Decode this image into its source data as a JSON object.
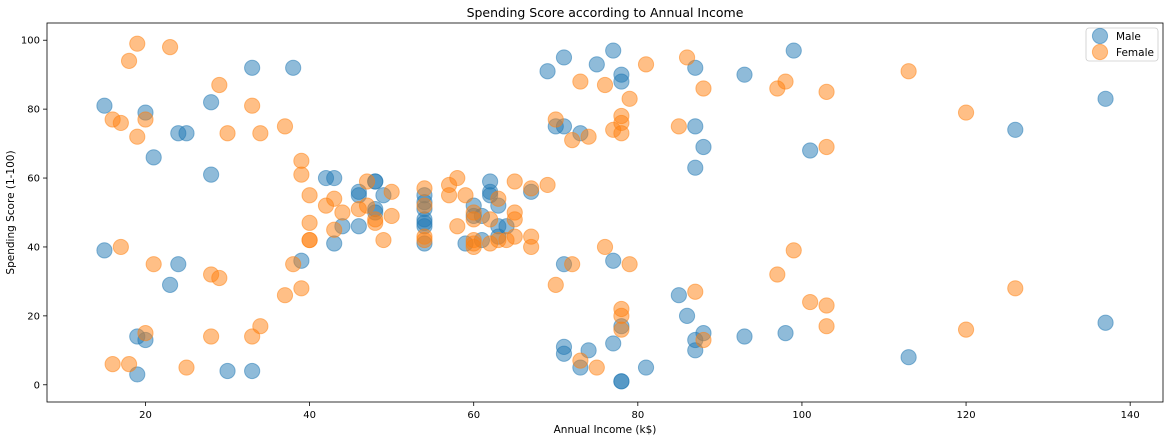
{
  "chart_data": {
    "type": "scatter",
    "title": "Spending Score according to Annual Income",
    "xlabel": "Annual Income (k$)",
    "ylabel": "Spending Score (1-100)",
    "xlim": [
      8,
      144
    ],
    "ylim": [
      -5,
      105
    ],
    "xticks": [
      20,
      40,
      60,
      80,
      100,
      120,
      140
    ],
    "yticks": [
      0,
      20,
      40,
      60,
      80,
      100
    ],
    "grid": false,
    "legend": "top-right",
    "series": [
      {
        "name": "Male",
        "color": "#1f77b4",
        "points": [
          [
            15,
            39
          ],
          [
            15,
            81
          ],
          [
            19,
            3
          ],
          [
            19,
            14
          ],
          [
            20,
            13
          ],
          [
            20,
            79
          ],
          [
            21,
            66
          ],
          [
            23,
            29
          ],
          [
            24,
            35
          ],
          [
            24,
            73
          ],
          [
            25,
            73
          ],
          [
            28,
            82
          ],
          [
            28,
            61
          ],
          [
            30,
            4
          ],
          [
            33,
            92
          ],
          [
            33,
            4
          ],
          [
            38,
            92
          ],
          [
            39,
            36
          ],
          [
            42,
            60
          ],
          [
            43,
            60
          ],
          [
            43,
            41
          ],
          [
            44,
            46
          ],
          [
            46,
            46
          ],
          [
            46,
            56
          ],
          [
            46,
            55
          ],
          [
            48,
            59
          ],
          [
            48,
            59
          ],
          [
            48,
            51
          ],
          [
            48,
            50
          ],
          [
            49,
            55
          ],
          [
            54,
            41
          ],
          [
            54,
            47
          ],
          [
            54,
            48
          ],
          [
            54,
            46
          ],
          [
            54,
            53
          ],
          [
            54,
            55
          ],
          [
            54,
            51
          ],
          [
            59,
            41
          ],
          [
            60,
            52
          ],
          [
            60,
            49
          ],
          [
            61,
            49
          ],
          [
            61,
            42
          ],
          [
            62,
            56
          ],
          [
            62,
            59
          ],
          [
            62,
            55
          ],
          [
            63,
            43
          ],
          [
            63,
            52
          ],
          [
            63,
            46
          ],
          [
            64,
            46
          ],
          [
            67,
            56
          ],
          [
            69,
            91
          ],
          [
            70,
            75
          ],
          [
            71,
            95
          ],
          [
            71,
            75
          ],
          [
            71,
            11
          ],
          [
            71,
            9
          ],
          [
            71,
            35
          ],
          [
            73,
            73
          ],
          [
            73,
            5
          ],
          [
            74,
            10
          ],
          [
            75,
            93
          ],
          [
            77,
            97
          ],
          [
            77,
            12
          ],
          [
            77,
            36
          ],
          [
            78,
            90
          ],
          [
            78,
            88
          ],
          [
            78,
            17
          ],
          [
            78,
            1
          ],
          [
            78,
            1
          ],
          [
            81,
            5
          ],
          [
            85,
            26
          ],
          [
            86,
            20
          ],
          [
            87,
            92
          ],
          [
            87,
            75
          ],
          [
            87,
            63
          ],
          [
            87,
            13
          ],
          [
            87,
            10
          ],
          [
            88,
            69
          ],
          [
            88,
            15
          ],
          [
            93,
            90
          ],
          [
            93,
            14
          ],
          [
            98,
            15
          ],
          [
            99,
            97
          ],
          [
            101,
            68
          ],
          [
            113,
            8
          ],
          [
            126,
            74
          ],
          [
            137,
            83
          ],
          [
            137,
            18
          ]
        ]
      },
      {
        "name": "Female",
        "color": "#ff7f0e",
        "points": [
          [
            16,
            6
          ],
          [
            16,
            77
          ],
          [
            17,
            76
          ],
          [
            17,
            40
          ],
          [
            18,
            6
          ],
          [
            18,
            94
          ],
          [
            19,
            72
          ],
          [
            19,
            99
          ],
          [
            20,
            15
          ],
          [
            20,
            77
          ],
          [
            21,
            35
          ],
          [
            23,
            98
          ],
          [
            25,
            5
          ],
          [
            28,
            14
          ],
          [
            28,
            32
          ],
          [
            29,
            31
          ],
          [
            29,
            87
          ],
          [
            30,
            73
          ],
          [
            33,
            14
          ],
          [
            33,
            81
          ],
          [
            34,
            17
          ],
          [
            34,
            73
          ],
          [
            37,
            26
          ],
          [
            37,
            75
          ],
          [
            38,
            35
          ],
          [
            39,
            28
          ],
          [
            39,
            61
          ],
          [
            39,
            65
          ],
          [
            40,
            55
          ],
          [
            40,
            47
          ],
          [
            40,
            42
          ],
          [
            40,
            42
          ],
          [
            42,
            52
          ],
          [
            43,
            54
          ],
          [
            43,
            45
          ],
          [
            44,
            50
          ],
          [
            46,
            51
          ],
          [
            47,
            59
          ],
          [
            47,
            52
          ],
          [
            48,
            47
          ],
          [
            48,
            48
          ],
          [
            49,
            42
          ],
          [
            50,
            49
          ],
          [
            50,
            56
          ],
          [
            54,
            57
          ],
          [
            54,
            43
          ],
          [
            54,
            42
          ],
          [
            54,
            52
          ],
          [
            57,
            58
          ],
          [
            57,
            55
          ],
          [
            58,
            60
          ],
          [
            58,
            46
          ],
          [
            59,
            55
          ],
          [
            60,
            41
          ],
          [
            60,
            40
          ],
          [
            60,
            48
          ],
          [
            60,
            50
          ],
          [
            60,
            42
          ],
          [
            62,
            41
          ],
          [
            62,
            48
          ],
          [
            63,
            54
          ],
          [
            63,
            42
          ],
          [
            64,
            42
          ],
          [
            65,
            59
          ],
          [
            65,
            50
          ],
          [
            65,
            48
          ],
          [
            65,
            43
          ],
          [
            67,
            43
          ],
          [
            67,
            57
          ],
          [
            67,
            40
          ],
          [
            69,
            58
          ],
          [
            70,
            77
          ],
          [
            70,
            29
          ],
          [
            72,
            35
          ],
          [
            72,
            71
          ],
          [
            73,
            88
          ],
          [
            73,
            7
          ],
          [
            74,
            72
          ],
          [
            75,
            5
          ],
          [
            76,
            40
          ],
          [
            76,
            87
          ],
          [
            77,
            74
          ],
          [
            78,
            22
          ],
          [
            78,
            20
          ],
          [
            78,
            76
          ],
          [
            78,
            78
          ],
          [
            78,
            73
          ],
          [
            78,
            16
          ],
          [
            79,
            35
          ],
          [
            79,
            83
          ],
          [
            81,
            93
          ],
          [
            85,
            75
          ],
          [
            86,
            95
          ],
          [
            87,
            27
          ],
          [
            88,
            13
          ],
          [
            88,
            86
          ],
          [
            97,
            32
          ],
          [
            97,
            86
          ],
          [
            98,
            88
          ],
          [
            99,
            39
          ],
          [
            101,
            24
          ],
          [
            103,
            17
          ],
          [
            103,
            85
          ],
          [
            103,
            23
          ],
          [
            103,
            69
          ],
          [
            113,
            91
          ],
          [
            120,
            16
          ],
          [
            120,
            79
          ],
          [
            126,
            28
          ]
        ]
      }
    ]
  }
}
